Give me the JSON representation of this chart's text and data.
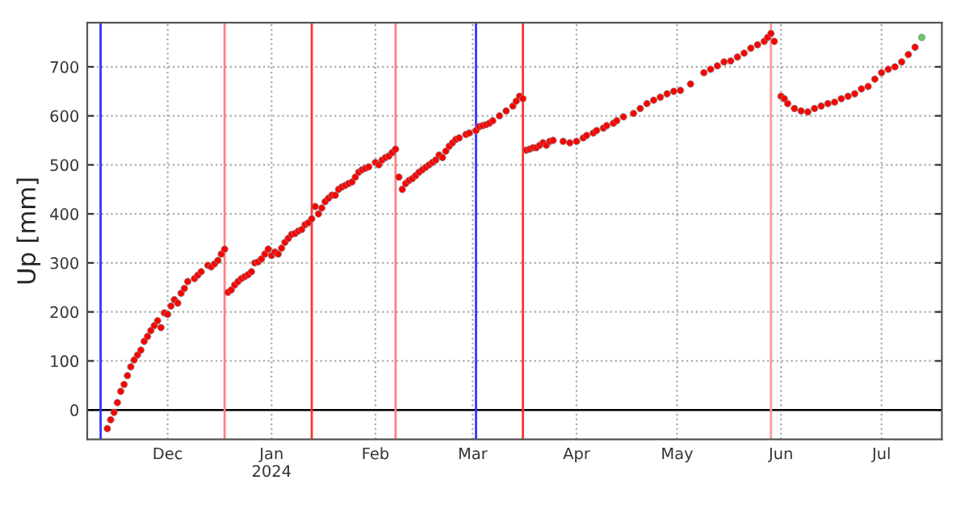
{
  "chart_data": {
    "type": "scatter",
    "ylabel": "Up [mm]",
    "marker": "circle",
    "grid": true,
    "xlim": [
      "2023-11-07",
      "2024-07-19"
    ],
    "xticks": [
      {
        "value": "2023-12-01",
        "label": "Dec"
      },
      {
        "value": "2024-01-01",
        "label": "Jan\n2024"
      },
      {
        "value": "2024-02-01",
        "label": "Feb"
      },
      {
        "value": "2024-03-01",
        "label": "Mar"
      },
      {
        "value": "2024-04-01",
        "label": "Apr"
      },
      {
        "value": "2024-05-01",
        "label": "May"
      },
      {
        "value": "2024-06-01",
        "label": "Jun"
      },
      {
        "value": "2024-07-01",
        "label": "Jul"
      }
    ],
    "ylim": [
      -60,
      790
    ],
    "yticks": [
      0,
      100,
      200,
      300,
      400,
      500,
      600,
      700
    ],
    "ref_lines": [
      {
        "axis": "y",
        "value": 0,
        "color": "#000000"
      },
      {
        "axis": "x",
        "value": "2023-11-11",
        "color": "#3333ff"
      },
      {
        "axis": "x",
        "value": "2023-12-18",
        "color": "#ff8080"
      },
      {
        "axis": "x",
        "value": "2024-01-13",
        "color": "#ff3333"
      },
      {
        "axis": "x",
        "value": "2024-02-07",
        "color": "#ff8080"
      },
      {
        "axis": "x",
        "value": "2024-03-02",
        "color": "#3333ff"
      },
      {
        "axis": "x",
        "value": "2024-03-16",
        "color": "#ff3333"
      },
      {
        "axis": "x",
        "value": "2024-05-29",
        "color": "#ff9999"
      }
    ],
    "series": [
      {
        "color": "#ff0000",
        "x": [
          "2023-11-13",
          "2023-11-14",
          "2023-11-15",
          "2023-11-16",
          "2023-11-17",
          "2023-11-18",
          "2023-11-19",
          "2023-11-20",
          "2023-11-21",
          "2023-11-22",
          "2023-11-23",
          "2023-11-24",
          "2023-11-25",
          "2023-11-26",
          "2023-11-27",
          "2023-11-28",
          "2023-11-29",
          "2023-11-30",
          "2023-12-01",
          "2023-12-02",
          "2023-12-03",
          "2023-12-04",
          "2023-12-05",
          "2023-12-06",
          "2023-12-07",
          "2023-12-09",
          "2023-12-10",
          "2023-12-11",
          "2023-12-13",
          "2023-12-14",
          "2023-12-15",
          "2023-12-16",
          "2023-12-17",
          "2023-12-18",
          "2023-12-19",
          "2023-12-20",
          "2023-12-21",
          "2023-12-22",
          "2023-12-23",
          "2023-12-24",
          "2023-12-25",
          "2023-12-26",
          "2023-12-27",
          "2023-12-28",
          "2023-12-29",
          "2023-12-30",
          "2023-12-31",
          "2024-01-01",
          "2024-01-02",
          "2024-01-03",
          "2024-01-04",
          "2024-01-05",
          "2024-01-06",
          "2024-01-07",
          "2024-01-08",
          "2024-01-09",
          "2024-01-10",
          "2024-01-11",
          "2024-01-12",
          "2024-01-13",
          "2024-01-14",
          "2024-01-15",
          "2024-01-16",
          "2024-01-17",
          "2024-01-18",
          "2024-01-19",
          "2024-01-20",
          "2024-01-21",
          "2024-01-22",
          "2024-01-23",
          "2024-01-24",
          "2024-01-25",
          "2024-01-26",
          "2024-01-27",
          "2024-01-28",
          "2024-01-29",
          "2024-01-30",
          "2024-02-01",
          "2024-02-02",
          "2024-02-03",
          "2024-02-04",
          "2024-02-05",
          "2024-02-06",
          "2024-02-07",
          "2024-02-08",
          "2024-02-09",
          "2024-02-10",
          "2024-02-11",
          "2024-02-12",
          "2024-02-13",
          "2024-02-14",
          "2024-02-15",
          "2024-02-16",
          "2024-02-17",
          "2024-02-18",
          "2024-02-19",
          "2024-02-20",
          "2024-02-21",
          "2024-02-22",
          "2024-02-23",
          "2024-02-24",
          "2024-02-25",
          "2024-02-26",
          "2024-02-28",
          "2024-02-29",
          "2024-03-02",
          "2024-03-03",
          "2024-03-04",
          "2024-03-05",
          "2024-03-06",
          "2024-03-07",
          "2024-03-09",
          "2024-03-11",
          "2024-03-13",
          "2024-03-14",
          "2024-03-15",
          "2024-03-16",
          "2024-03-17",
          "2024-03-18",
          "2024-03-19",
          "2024-03-20",
          "2024-03-21",
          "2024-03-22",
          "2024-03-23",
          "2024-03-24",
          "2024-03-25",
          "2024-03-28",
          "2024-03-30",
          "2024-04-01",
          "2024-04-03",
          "2024-04-04",
          "2024-04-06",
          "2024-04-07",
          "2024-04-09",
          "2024-04-10",
          "2024-04-12",
          "2024-04-13",
          "2024-04-15",
          "2024-04-18",
          "2024-04-20",
          "2024-04-22",
          "2024-04-24",
          "2024-04-26",
          "2024-04-28",
          "2024-04-30",
          "2024-05-02",
          "2024-05-05",
          "2024-05-09",
          "2024-05-11",
          "2024-05-13",
          "2024-05-15",
          "2024-05-17",
          "2024-05-19",
          "2024-05-21",
          "2024-05-23",
          "2024-05-25",
          "2024-05-27",
          "2024-05-28",
          "2024-05-29",
          "2024-05-30",
          "2024-06-01",
          "2024-06-02",
          "2024-06-03",
          "2024-06-05",
          "2024-06-07",
          "2024-06-09",
          "2024-06-11",
          "2024-06-13",
          "2024-06-15",
          "2024-06-17",
          "2024-06-19",
          "2024-06-21",
          "2024-06-23",
          "2024-06-25",
          "2024-06-27",
          "2024-06-29",
          "2024-07-01",
          "2024-07-03",
          "2024-07-05",
          "2024-07-07",
          "2024-07-09",
          "2024-07-11"
        ],
        "values": [
          -38,
          -20,
          -5,
          15,
          38,
          52,
          70,
          88,
          102,
          112,
          122,
          140,
          150,
          162,
          172,
          182,
          168,
          198,
          195,
          212,
          225,
          218,
          238,
          248,
          262,
          268,
          275,
          282,
          295,
          292,
          298,
          305,
          318,
          328,
          240,
          245,
          255,
          262,
          268,
          272,
          276,
          282,
          300,
          302,
          308,
          318,
          328,
          315,
          322,
          318,
          330,
          342,
          350,
          358,
          360,
          365,
          368,
          378,
          382,
          390,
          415,
          400,
          412,
          425,
          432,
          438,
          438,
          450,
          455,
          458,
          462,
          465,
          475,
          485,
          490,
          493,
          496,
          505,
          500,
          510,
          515,
          518,
          525,
          532,
          475,
          450,
          462,
          468,
          472,
          478,
          485,
          490,
          495,
          500,
          505,
          510,
          520,
          515,
          528,
          538,
          545,
          552,
          555,
          562,
          565,
          570,
          578,
          580,
          582,
          585,
          590,
          600,
          610,
          620,
          630,
          640,
          635,
          530,
          532,
          535,
          535,
          540,
          545,
          540,
          548,
          550,
          548,
          545,
          548,
          555,
          560,
          565,
          570,
          575,
          580,
          585,
          590,
          598,
          605,
          615,
          625,
          632,
          638,
          645,
          650,
          652,
          665,
          688,
          695,
          702,
          710,
          712,
          720,
          728,
          738,
          745,
          752,
          760,
          768,
          752,
          640,
          635,
          625,
          615,
          610,
          608,
          615,
          620,
          625,
          628,
          635,
          640,
          645,
          655,
          660,
          675,
          688,
          695,
          700,
          710,
          725,
          740
        ]
      },
      {
        "color": "#66cc66",
        "x": [
          "2024-07-13"
        ],
        "values": [
          760
        ]
      }
    ]
  }
}
